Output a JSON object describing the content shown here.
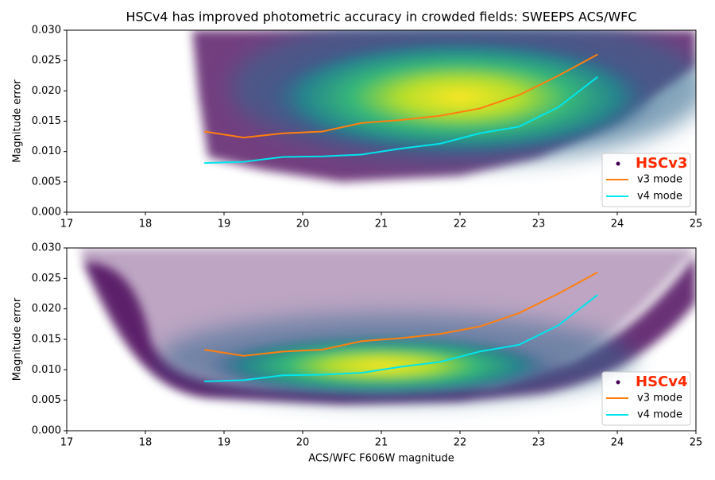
{
  "chart_data": [
    {
      "type": "line",
      "title": "HSCv4 has improved photometric accuracy in crowded fields: SWEEPS ACS/WFC",
      "ylabel": "Magnitude error",
      "xlim": [
        17,
        25
      ],
      "xticks": [
        17,
        18,
        19,
        20,
        21,
        22,
        23,
        24,
        25
      ],
      "ylim": [
        0,
        0.03
      ],
      "yticks": [
        {
          "value": 0,
          "label": "0.000"
        },
        0.005,
        {
          "value": 0.01,
          "label": "0.010"
        },
        0.015,
        {
          "value": 0.02,
          "label": "0.020"
        },
        0.025,
        {
          "value": 0.03,
          "label": "0.030"
        }
      ],
      "scatter": {
        "name": "HSCv3",
        "color": "#440154",
        "label_color": "#ff2a00"
      },
      "legend": "lower right",
      "x": [
        18.75,
        19.25,
        19.75,
        20.25,
        20.75,
        21.25,
        21.75,
        22.25,
        22.75,
        23.25,
        23.75
      ],
      "series": [
        {
          "name": "v3 mode",
          "color": "#ff7f0e",
          "values": [
            0.0133,
            0.0123,
            0.013,
            0.0133,
            0.0147,
            0.0152,
            0.0159,
            0.0171,
            0.0193,
            0.0225,
            0.026
          ]
        },
        {
          "name": "v4 mode",
          "color": "#00e5ee",
          "values": [
            0.0081,
            0.0083,
            0.0091,
            0.0092,
            0.0095,
            0.0105,
            0.0113,
            0.013,
            0.0141,
            0.0173,
            0.0223
          ]
        }
      ]
    },
    {
      "type": "line",
      "xlabel": "ACS/WFC F606W magnitude",
      "ylabel": "Magnitude error",
      "xlim": [
        17,
        25
      ],
      "xticks": [
        17,
        18,
        19,
        20,
        21,
        22,
        23,
        24,
        25
      ],
      "ylim": [
        0,
        0.03
      ],
      "yticks": [
        {
          "value": 0,
          "label": "0.000"
        },
        0.005,
        {
          "value": 0.01,
          "label": "0.010"
        },
        0.015,
        {
          "value": 0.02,
          "label": "0.020"
        },
        0.025,
        {
          "value": 0.03,
          "label": "0.030"
        }
      ],
      "scatter": {
        "name": "HSCv4",
        "color": "#440154",
        "label_color": "#ff2a00"
      },
      "legend": "lower right",
      "x": [
        18.75,
        19.25,
        19.75,
        20.25,
        20.75,
        21.25,
        21.75,
        22.25,
        22.75,
        23.25,
        23.75
      ],
      "series": [
        {
          "name": "v3 mode",
          "color": "#ff7f0e",
          "values": [
            0.0133,
            0.0123,
            0.013,
            0.0133,
            0.0147,
            0.0152,
            0.0159,
            0.0171,
            0.0193,
            0.0225,
            0.026
          ]
        },
        {
          "name": "v4 mode",
          "color": "#00e5ee",
          "values": [
            0.0081,
            0.0083,
            0.0091,
            0.0092,
            0.0095,
            0.0105,
            0.0113,
            0.013,
            0.0141,
            0.0173,
            0.0223
          ]
        }
      ]
    }
  ]
}
